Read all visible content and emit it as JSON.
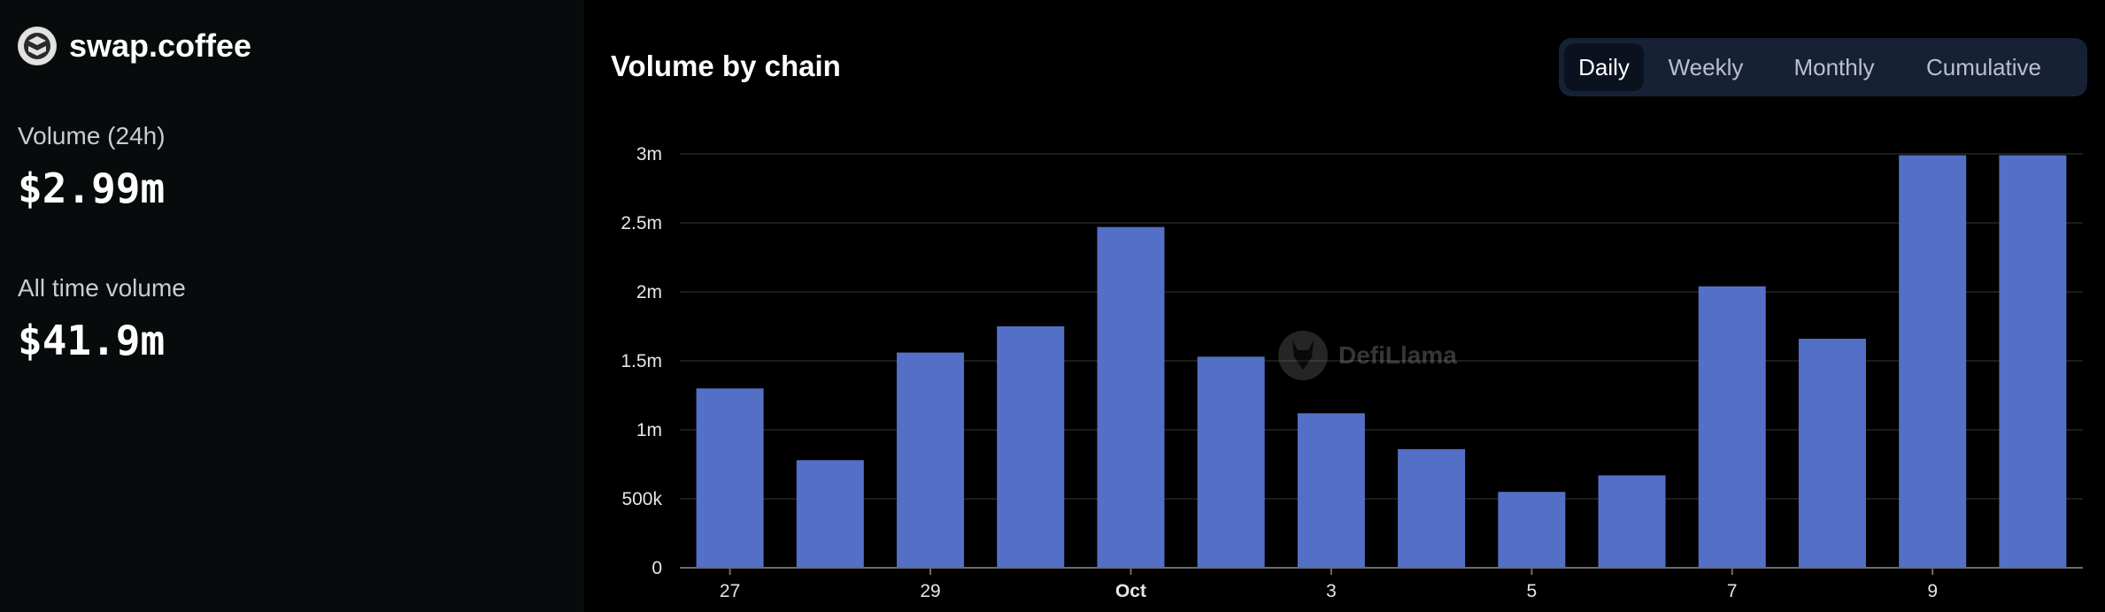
{
  "brand": {
    "name": "swap.coffee",
    "logo_icon": "coffee-logo-icon"
  },
  "metrics": {
    "volume_24h_label": "Volume (24h)",
    "volume_24h_value": "$2.99m",
    "all_time_label": "All time volume",
    "all_time_value": "$41.9m"
  },
  "tabs": [
    {
      "label": "Daily",
      "active": true
    },
    {
      "label": "Weekly",
      "active": false
    },
    {
      "label": "Monthly",
      "active": false
    },
    {
      "label": "Cumulative",
      "active": false
    }
  ],
  "watermark": {
    "text": "DefiLlama",
    "icon": "llama-icon"
  },
  "colors": {
    "bar": "#5470c6",
    "grid": "#1c1c1c",
    "axis": "#6b6b6b"
  },
  "chart_data": {
    "type": "bar",
    "title": "Volume by chain",
    "categories": [
      "Sep 27",
      "Sep 28",
      "Sep 29",
      "Sep 30",
      "Oct 1",
      "Oct 2",
      "Oct 3",
      "Oct 4",
      "Oct 5",
      "Oct 6",
      "Oct 7",
      "Oct 8",
      "Oct 9",
      "Oct 10"
    ],
    "values": [
      1300000,
      780000,
      1560000,
      1750000,
      2470000,
      1530000,
      1120000,
      860000,
      550000,
      670000,
      2040000,
      1660000,
      2990000,
      2990000
    ],
    "ylim": [
      0,
      3000000
    ],
    "yticks": [
      {
        "value": 0,
        "label": "0"
      },
      {
        "value": 500000,
        "label": "500k"
      },
      {
        "value": 1000000,
        "label": "1m"
      },
      {
        "value": 1500000,
        "label": "1.5m"
      },
      {
        "value": 2000000,
        "label": "2m"
      },
      {
        "value": 2500000,
        "label": "2.5m"
      },
      {
        "value": 3000000,
        "label": "3m"
      }
    ],
    "xticks": [
      {
        "category": "Sep 27",
        "label": "27",
        "bold": false
      },
      {
        "category": "Sep 29",
        "label": "29",
        "bold": false
      },
      {
        "category": "Oct 1",
        "label": "Oct",
        "bold": true
      },
      {
        "category": "Oct 3",
        "label": "3",
        "bold": false
      },
      {
        "category": "Oct 5",
        "label": "5",
        "bold": false
      },
      {
        "category": "Oct 7",
        "label": "7",
        "bold": false
      },
      {
        "category": "Oct 9",
        "label": "9",
        "bold": false
      }
    ],
    "grid": true,
    "legend": "none"
  }
}
